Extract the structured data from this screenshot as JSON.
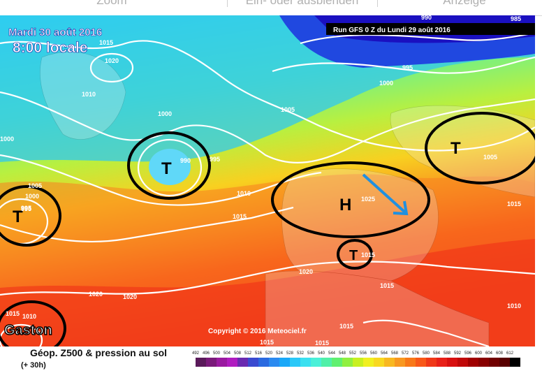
{
  "toolbar": {
    "zoom_label": "Zoom",
    "toggle_label": "Ein- oder ausblenden",
    "show_label": "Anzeige"
  },
  "map": {
    "date_line": "Mardi 30 août 2016",
    "time_line": "8:00 locale",
    "run_info": "Run GFS 0 Z du Lundi 29 août 2016",
    "copyright": "Copyright © 2016 Meteociel.fr",
    "storm_label": "Gaston",
    "systems": [
      {
        "symbol": "T"
      },
      {
        "symbol": "T"
      },
      {
        "symbol": "T"
      },
      {
        "symbol": "H"
      },
      {
        "symbol": "T"
      }
    ],
    "isobar_labels": [
      "1015",
      "1020",
      "1010",
      "1000",
      "995",
      "990",
      "1005",
      "1000",
      "995",
      "1005",
      "1025",
      "1010",
      "1015",
      "1020",
      "1015",
      "1015",
      "1020",
      "1020",
      "1015",
      "1015",
      "1010",
      "1010",
      "1000",
      "995",
      "1005",
      "1015",
      "1015",
      "1015",
      "990",
      "985",
      "1000",
      "995",
      "1005",
      "1015"
    ]
  },
  "legend": {
    "title": "Géop. Z500 & pression au sol",
    "subtitle": "(+ 30h)",
    "scale": {
      "labels": [
        "492",
        "496",
        "500",
        "504",
        "508",
        "512",
        "516",
        "520",
        "524",
        "528",
        "532",
        "536",
        "540",
        "544",
        "548",
        "552",
        "556",
        "560",
        "564",
        "568",
        "572",
        "576",
        "580",
        "584",
        "588",
        "592",
        "596",
        "600",
        "604",
        "608",
        "612"
      ],
      "colors": [
        "#5a1a5a",
        "#7a1a7a",
        "#9a1aa0",
        "#b01cc0",
        "#6a2ab0",
        "#3a4ad0",
        "#2a6ae0",
        "#2a8af0",
        "#1aa8f8",
        "#2ac8f8",
        "#3ae0f0",
        "#4af0d8",
        "#50f0a8",
        "#60f070",
        "#90f040",
        "#c8f020",
        "#f0f020",
        "#f8d820",
        "#f8b820",
        "#f89820",
        "#f87818",
        "#f85818",
        "#f03818",
        "#e82018",
        "#d81010",
        "#c00808",
        "#a00000",
        "#880000",
        "#700000",
        "#580000",
        "#000000"
      ]
    }
  }
}
